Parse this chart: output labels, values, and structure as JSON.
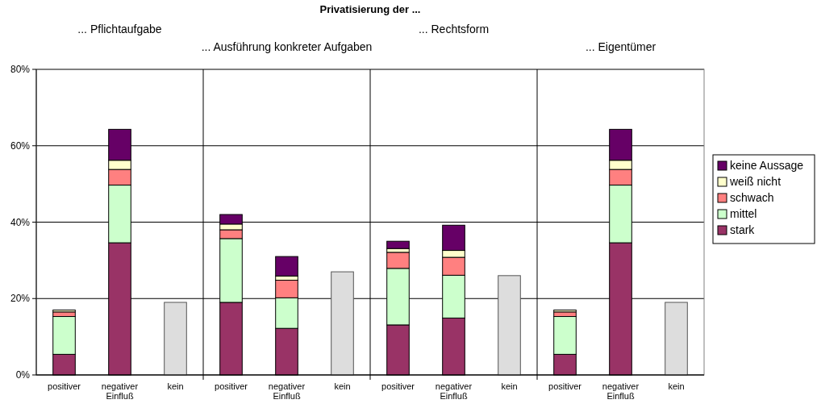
{
  "chart_data": {
    "type": "bar",
    "stacked": true,
    "title": "Privatisierung der ...",
    "annotations": [
      "... Pflichtaufgabe",
      "... Ausführung konkreter Aufgaben",
      "... Rechtsform",
      "... Eigentümer"
    ],
    "categories": [
      "positiver",
      "negativer Einfluß",
      "kein",
      "positiver",
      "negativer Einfluß",
      "kein",
      "positiver",
      "negativer Einfluß",
      "kein",
      "positiver",
      "negativer Einfluß",
      "kein"
    ],
    "series": [
      {
        "name": "stark",
        "color": "#993366",
        "values": [
          5.4,
          34.6,
          null,
          19,
          12.2,
          null,
          13.1,
          14.9,
          null,
          5.4,
          34.6,
          null
        ]
      },
      {
        "name": "mittel",
        "color": "#ccffcc",
        "values": [
          9.9,
          15.1,
          null,
          16.7,
          8,
          null,
          14.8,
          11.2,
          null,
          9.9,
          15.1,
          null
        ]
      },
      {
        "name": "schwach",
        "color": "#ff8080",
        "values": [
          1.2,
          4.1,
          null,
          2.3,
          4.6,
          null,
          4.2,
          4.7,
          null,
          1.2,
          4.1,
          null
        ]
      },
      {
        "name": "weiß nicht",
        "color": "#ffffcc",
        "values": [
          0.5,
          2.4,
          null,
          1.5,
          1.1,
          null,
          1,
          1.8,
          null,
          0.5,
          2.4,
          null
        ]
      },
      {
        "name": "keine Aussage",
        "color": "#660066",
        "values": [
          0,
          8.1,
          null,
          2.5,
          5.1,
          null,
          1.9,
          6.6,
          null,
          0,
          8.1,
          null
        ]
      },
      {
        "color": "#dddddd",
        "values": [
          null,
          null,
          19,
          null,
          null,
          27,
          null,
          null,
          26,
          null,
          null,
          19
        ]
      }
    ],
    "ylim": [
      0,
      80
    ],
    "yticks": [
      {
        "value": 0,
        "label": "0%"
      },
      {
        "value": 20,
        "label": "20%"
      },
      {
        "value": 40,
        "label": "40%"
      },
      {
        "value": 60,
        "label": "60%"
      },
      {
        "value": 80,
        "label": "80%"
      }
    ],
    "grid": "y",
    "legend": "right"
  }
}
